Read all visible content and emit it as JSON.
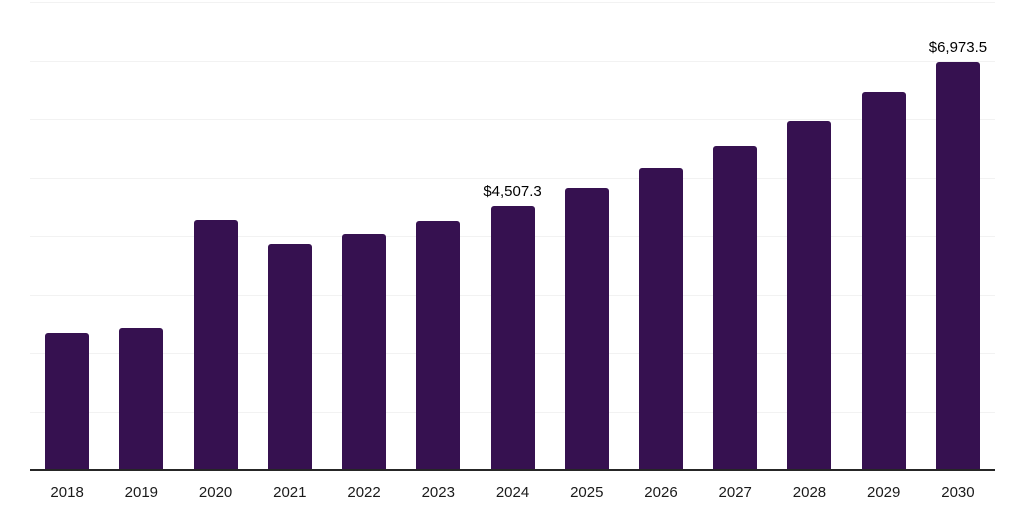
{
  "chart_data": {
    "type": "bar",
    "title": "",
    "xlabel": "",
    "ylabel": "",
    "categories": [
      "2018",
      "2019",
      "2020",
      "2021",
      "2022",
      "2023",
      "2024",
      "2025",
      "2026",
      "2027",
      "2028",
      "2029",
      "2030"
    ],
    "values": [
      2350,
      2430,
      4270,
      3860,
      4040,
      4260,
      4507.3,
      4815,
      5160,
      5540,
      5965,
      6460,
      6973.5
    ],
    "annotations": [
      {
        "category": "2024",
        "text": "$4,507.3"
      },
      {
        "category": "2030",
        "text": "$6,973.5"
      }
    ],
    "ylim": [
      0,
      8000
    ],
    "ytick_step": 1000,
    "grid": true,
    "y_tick_labels_visible": false,
    "legend": false,
    "colors": {
      "bar": "#361150",
      "grid": "#f2f2f2",
      "axis": "#262626",
      "annotation_text": "#000000",
      "tick_label_text": "#1a1a1a"
    }
  }
}
